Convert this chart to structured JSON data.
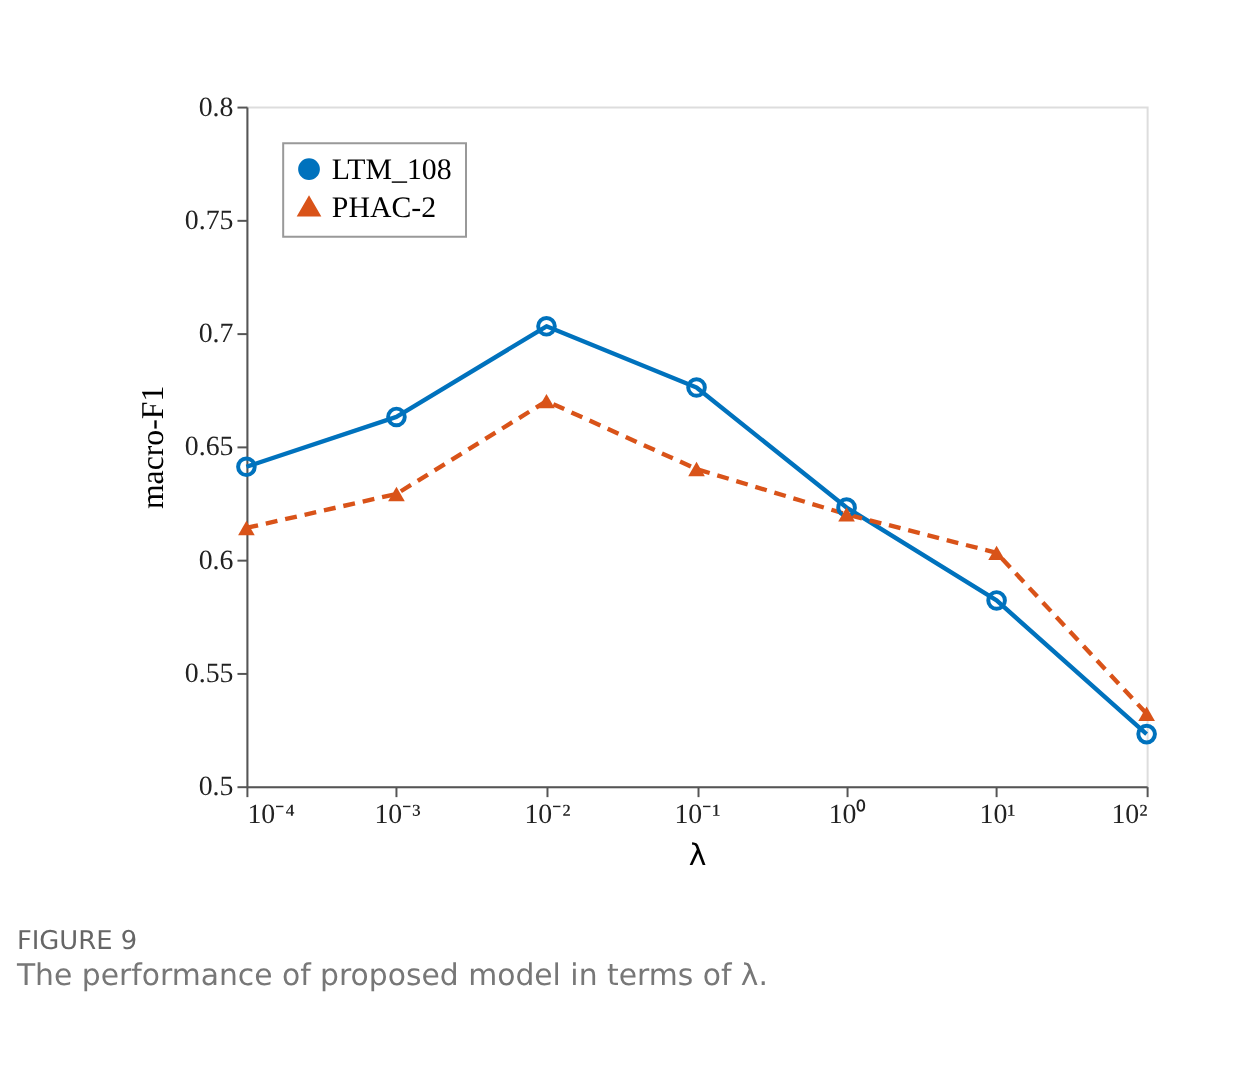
{
  "chart_data": {
    "type": "line",
    "xlabel": "λ",
    "ylabel": "macro-F1",
    "x": [
      0.0001,
      0.001,
      0.01,
      0.1,
      1,
      10,
      100
    ],
    "series": [
      {
        "name": "LTM_108",
        "color": "#0072bd",
        "marker": "circle",
        "line_style": "solid",
        "values": [
          0.641,
          0.663,
          0.703,
          0.676,
          0.623,
          0.582,
          0.523
        ]
      },
      {
        "name": "PHAC-2",
        "color": "#d95319",
        "marker": "triangle",
        "line_style": "dashed",
        "values": [
          0.614,
          0.629,
          0.67,
          0.64,
          0.62,
          0.603,
          0.532
        ]
      }
    ],
    "log": "x",
    "xlim": [
      0.0001,
      100
    ],
    "xticks": [
      {
        "value": 0.0001,
        "label": "10⁻⁴"
      },
      {
        "value": 0.001,
        "label": "10⁻³"
      },
      {
        "value": 0.01,
        "label": "10⁻²"
      },
      {
        "value": 0.1,
        "label": "10⁻¹"
      },
      {
        "value": 1,
        "label": "10⁰"
      },
      {
        "value": 10,
        "label": "10¹"
      },
      {
        "value": 100,
        "label": "10²"
      }
    ],
    "ylim": [
      0.5,
      0.8
    ],
    "yticks": [
      0.5,
      0.55,
      0.6,
      0.65,
      0.7,
      0.75,
      0.8
    ],
    "grid": false,
    "legend": "top left",
    "annotations": [
      "FIGURE 9",
      "The performance of proposed model in terms of λ."
    ]
  }
}
